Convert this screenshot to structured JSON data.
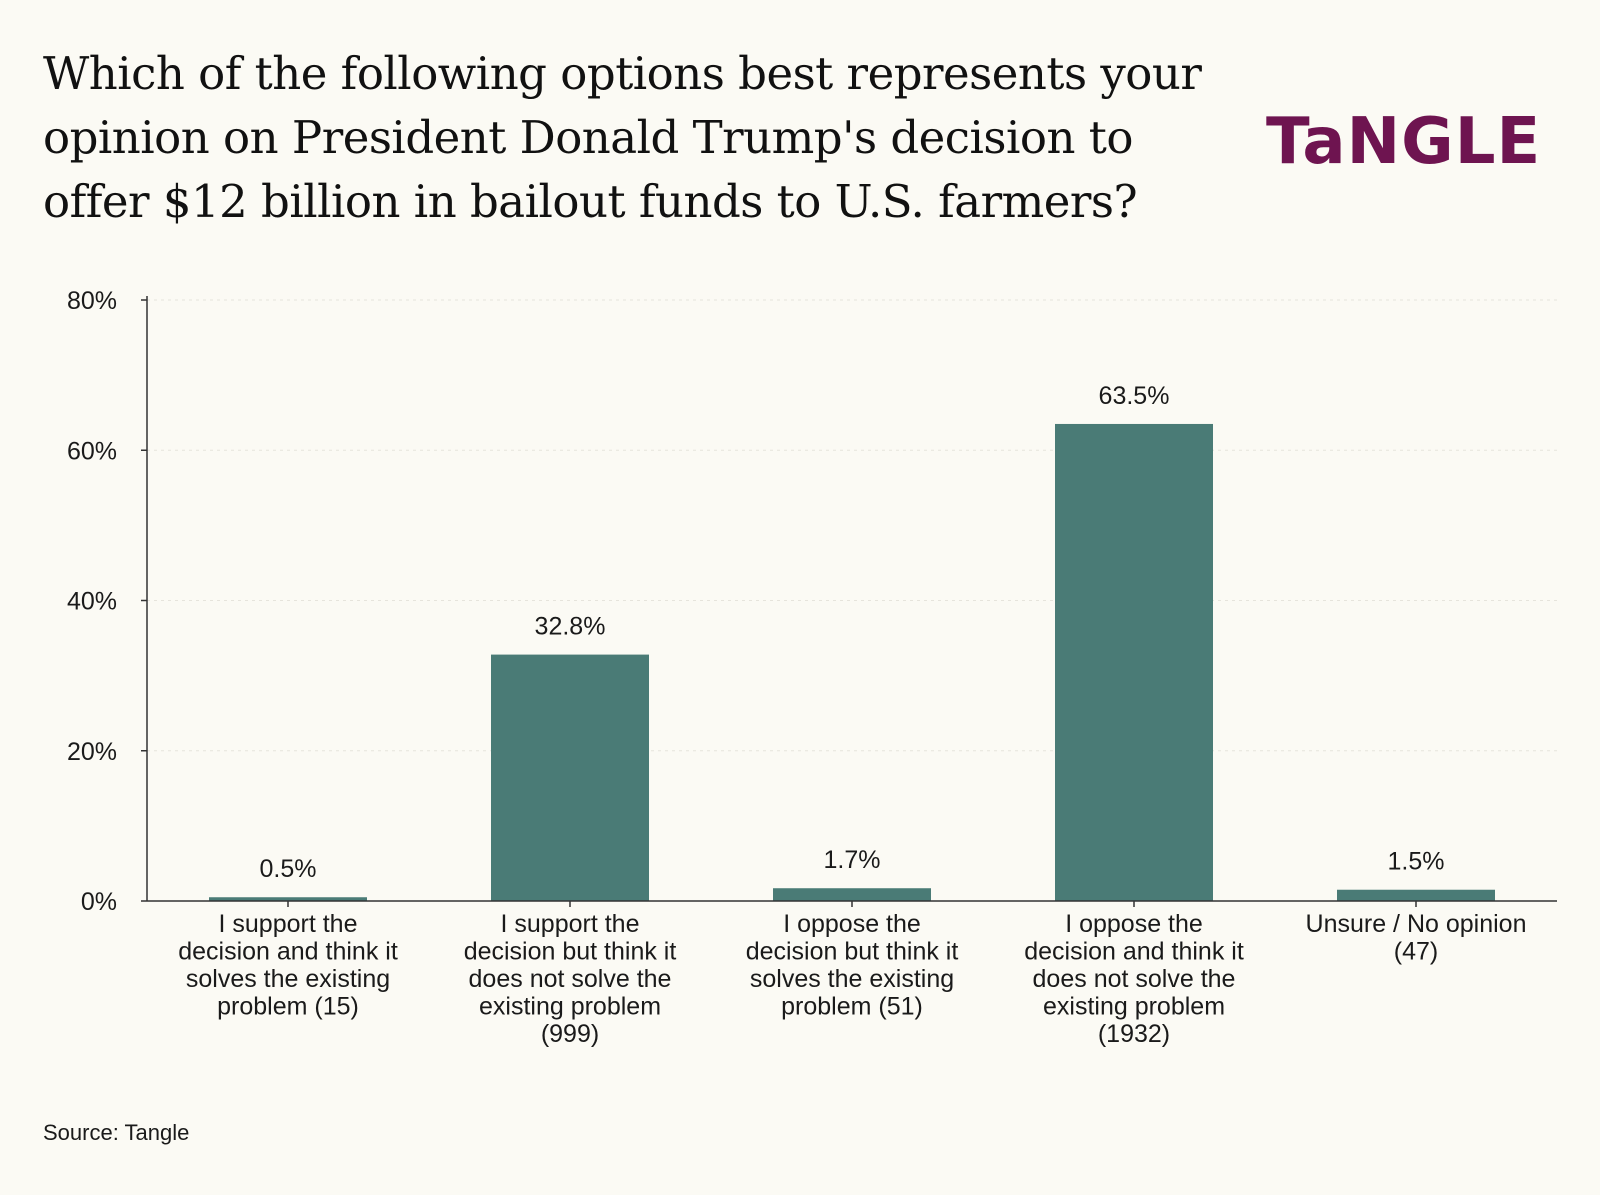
{
  "title": "Which of the following options best represents your opinion on President Donald Trump's decision to offer $12 billion in bailout funds to U.S. farmers?",
  "logo_text": "TaNGLE",
  "source": "Source: Tangle",
  "colors": {
    "bar": "#4a7b76",
    "brand": "#6e1450",
    "background": "#fbfaf4",
    "axis": "#333333",
    "grid": "#e6e4dc"
  },
  "chart_data": {
    "type": "bar",
    "categories": [
      [
        "I support the",
        "decision and think it",
        "solves the existing",
        "problem (15)"
      ],
      [
        "I support the",
        "decision but think it",
        "does not solve the",
        "existing problem",
        "(999)"
      ],
      [
        "I oppose the",
        "decision but think it",
        "solves the existing",
        "problem (51)"
      ],
      [
        "I oppose the",
        "decision and think it",
        "does not solve the",
        "existing problem",
        "(1932)"
      ],
      [
        "Unsure / No opinion",
        "(47)"
      ]
    ],
    "values": [
      0.5,
      32.8,
      1.7,
      63.5,
      1.5
    ],
    "data_labels": [
      "0.5%",
      "32.8%",
      "1.7%",
      "63.5%",
      "1.5%"
    ],
    "ylim": [
      0,
      80
    ],
    "yticks": [
      0,
      20,
      40,
      60,
      80
    ],
    "ytick_labels": [
      "0%",
      "20%",
      "40%",
      "60%",
      "80%"
    ],
    "grid": true,
    "legend": "none",
    "xlabel": "",
    "ylabel": ""
  }
}
